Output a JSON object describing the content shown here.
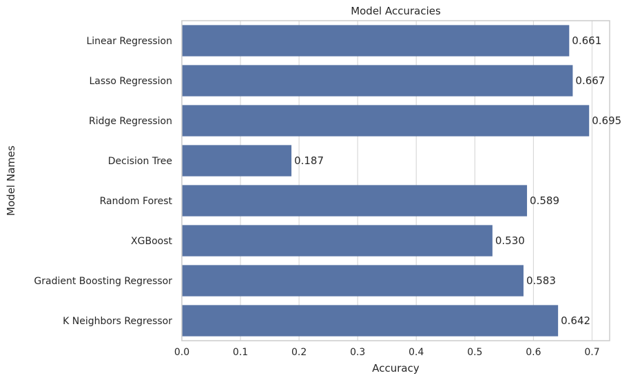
{
  "chart_data": {
    "type": "bar",
    "orientation": "horizontal",
    "title": "Model Accuracies",
    "xlabel": "Accuracy",
    "ylabel": "Model Names",
    "categories": [
      "Linear Regression",
      "Lasso Regression",
      "Ridge Regression",
      "Decision Tree",
      "Random Forest",
      "XGBoost",
      "Gradient Boosting Regressor",
      "K Neighbors Regressor"
    ],
    "values": [
      0.661,
      0.667,
      0.695,
      0.187,
      0.589,
      0.53,
      0.583,
      0.642
    ],
    "value_labels": [
      "0.661",
      "0.667",
      "0.695",
      "0.187",
      "0.589",
      "0.530",
      "0.583",
      "0.642"
    ],
    "xlim": [
      0.0,
      0.73
    ],
    "xticks": [
      0.0,
      0.1,
      0.2,
      0.3,
      0.4,
      0.5,
      0.6,
      0.7
    ],
    "xtick_labels": [
      "0.0",
      "0.1",
      "0.2",
      "0.3",
      "0.4",
      "0.5",
      "0.6",
      "0.7"
    ],
    "grid": "vertical",
    "bar_color": "#5874a5",
    "grid_color": "#d9d9d9",
    "frame_color": "#cccccc",
    "text_color": "#262626"
  }
}
